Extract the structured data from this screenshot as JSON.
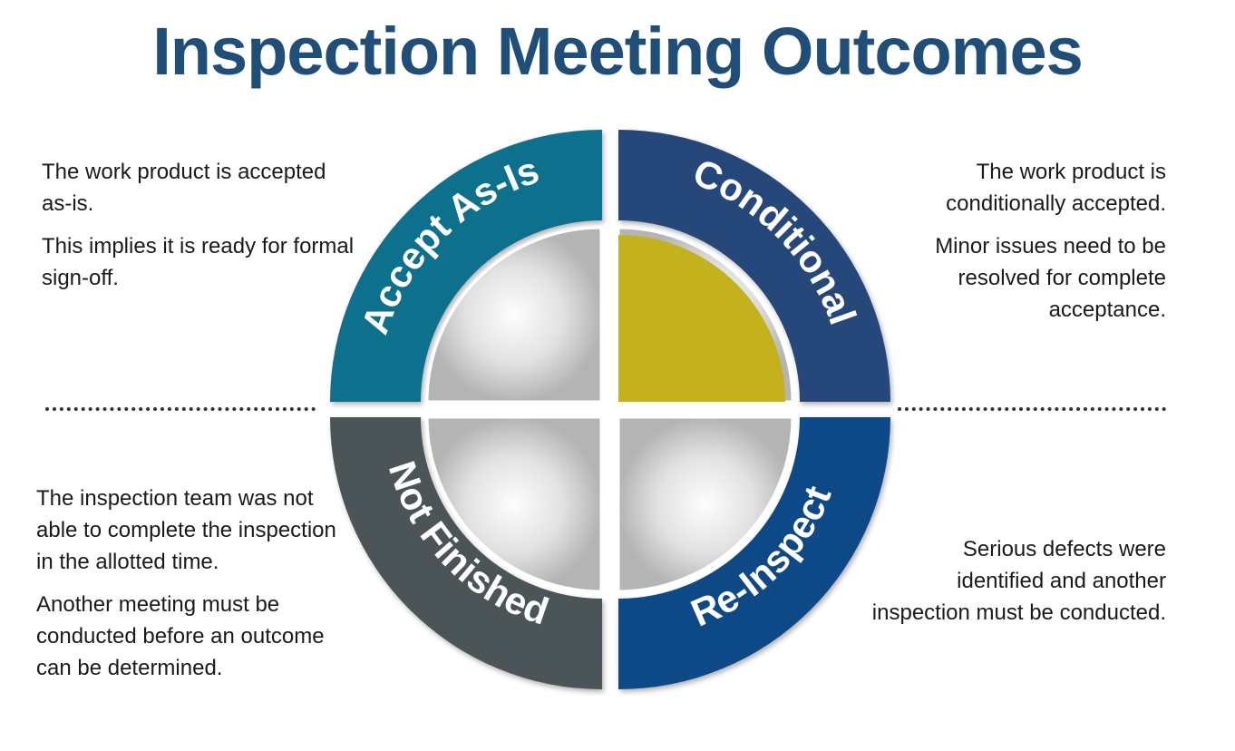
{
  "title": "Inspection Meeting Outcomes",
  "quadrants": {
    "accept": {
      "label": "Accept As-Is",
      "ring_color": "#0f6f8c"
    },
    "conditional": {
      "label": "Conditional",
      "ring_color": "#25477a",
      "inner_fill": "#c4b21c"
    },
    "not_finished": {
      "label": "Not Finished",
      "ring_color": "#4b5459"
    },
    "reinspect": {
      "label": "Re-Inspect",
      "ring_color": "#0b4a87"
    }
  },
  "descriptions": {
    "accept": [
      "The work product is accepted as-is.",
      "This implies it is ready for formal sign-off."
    ],
    "conditional": [
      "The work product is conditionally accepted.",
      "Minor issues need to be resolved for complete acceptance."
    ],
    "not_finished": [
      "The inspection team was not able to complete the inspection in the allotted time.",
      "Another meeting must be conducted before an outcome can be determined."
    ],
    "reinspect": [
      "Serious defects were identified and another inspection must be conducted."
    ]
  }
}
